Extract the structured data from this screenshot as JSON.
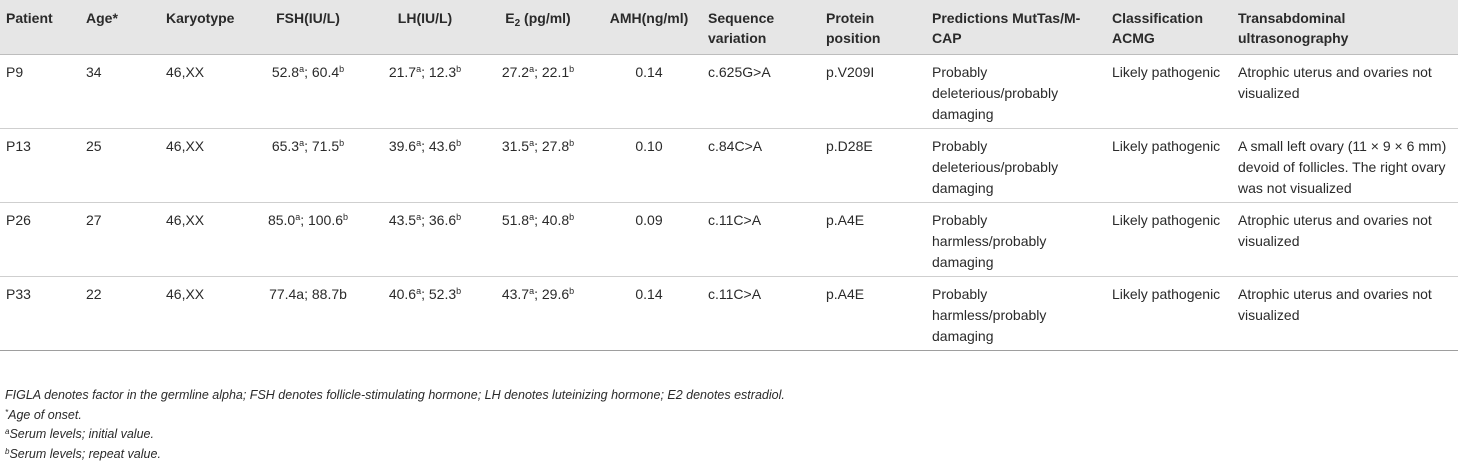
{
  "headers": [
    {
      "key": "patient",
      "text": "Patient",
      "align": "l"
    },
    {
      "key": "age",
      "text": "Age*",
      "align": "l"
    },
    {
      "key": "karyotype",
      "text": "Karyotype",
      "align": "l"
    },
    {
      "key": "fsh",
      "text": "FSH(IU/L)",
      "align": "c"
    },
    {
      "key": "lh",
      "text": "LH(IU/L)",
      "align": "c"
    },
    {
      "key": "e2",
      "text": "E",
      "sub": "2",
      "after": " (pg/ml)",
      "align": "c"
    },
    {
      "key": "amh",
      "text": "AMH(ng/ml)",
      "align": "c"
    },
    {
      "key": "seqvar",
      "text": "Sequence variation",
      "align": "l"
    },
    {
      "key": "protein",
      "text": "Protein position",
      "align": "l"
    },
    {
      "key": "pred",
      "text": "Predictions MutTas/M-CAP",
      "align": "l"
    },
    {
      "key": "acmg",
      "text": "Classification ACMG",
      "align": "l"
    },
    {
      "key": "us",
      "text": "Transabdominal ultrasonography",
      "align": "l"
    }
  ],
  "rows": [
    {
      "patient": "P9",
      "age": "34",
      "karyotype": "46,XX",
      "fsh": [
        {
          "t": "52.8"
        },
        {
          "s": "a"
        },
        {
          "t": "; 60.4"
        },
        {
          "s": "b"
        }
      ],
      "lh": [
        {
          "t": "21.7"
        },
        {
          "s": "a"
        },
        {
          "t": "; 12.3"
        },
        {
          "s": "b"
        }
      ],
      "e2": [
        {
          "t": "27.2"
        },
        {
          "s": "a"
        },
        {
          "t": "; 22.1"
        },
        {
          "s": "b"
        }
      ],
      "amh": "0.14",
      "seqvar": "c.625G>A",
      "protein": "p.V209I",
      "pred": "Probably deleterious/probably damaging",
      "acmg": "Likely pathogenic",
      "us": "Atrophic uterus and ovaries not visualized"
    },
    {
      "patient": "P13",
      "age": "25",
      "karyotype": "46,XX",
      "fsh": [
        {
          "t": "65.3"
        },
        {
          "s": "a"
        },
        {
          "t": "; 71.5"
        },
        {
          "s": "b"
        }
      ],
      "lh": [
        {
          "t": "39.6"
        },
        {
          "s": "a"
        },
        {
          "t": "; 43.6"
        },
        {
          "s": "b"
        }
      ],
      "e2": [
        {
          "t": "31.5"
        },
        {
          "s": "a"
        },
        {
          "t": "; 27.8"
        },
        {
          "s": "b"
        }
      ],
      "amh": "0.10",
      "seqvar": "c.84C>A",
      "protein": "p.D28E",
      "pred": "Probably deleterious/probably damaging",
      "acmg": "Likely pathogenic",
      "us": "A small left ovary (11 × 9 × 6 mm) devoid of follicles. The right ovary was not visualized"
    },
    {
      "patient": "P26",
      "age": "27",
      "karyotype": "46,XX",
      "fsh": [
        {
          "t": "85.0"
        },
        {
          "s": "a"
        },
        {
          "t": "; 100.6"
        },
        {
          "s": "b"
        }
      ],
      "lh": [
        {
          "t": "43.5"
        },
        {
          "s": "a"
        },
        {
          "t": "; 36.6"
        },
        {
          "s": "b"
        }
      ],
      "e2": [
        {
          "t": "51.8"
        },
        {
          "s": "a"
        },
        {
          "t": "; 40.8"
        },
        {
          "s": "b"
        }
      ],
      "amh": "0.09",
      "seqvar": "c.11C>A",
      "protein": "p.A4E",
      "pred": "Probably harmless/probably damaging",
      "acmg": "Likely pathogenic",
      "us": "Atrophic uterus and ovaries not visualized"
    },
    {
      "patient": "P33",
      "age": "22",
      "karyotype": "46,XX",
      "fsh": [
        {
          "t": "77.4a; 88.7b"
        }
      ],
      "lh": [
        {
          "t": "40.6"
        },
        {
          "s": "a"
        },
        {
          "t": "; 52.3"
        },
        {
          "s": "b"
        }
      ],
      "e2": [
        {
          "t": "43.7"
        },
        {
          "s": "a"
        },
        {
          "t": "; 29.6"
        },
        {
          "s": "b"
        }
      ],
      "amh": "0.14",
      "seqvar": "c.11C>A",
      "protein": "p.A4E",
      "pred": "Probably harmless/probably damaging",
      "acmg": "Likely pathogenic",
      "us": "Atrophic uterus and ovaries not visualized"
    }
  ],
  "footnotes": {
    "abbrev": "FIGLA denotes factor in the germline alpha; FSH denotes follicle-stimulating hormone; LH denotes luteinizing hormone; E2 denotes estradiol.",
    "star_mark": "*",
    "star_text": "Age of onset.",
    "a_mark": "a",
    "a_text": "Serum levels; initial value.",
    "b_mark": "b",
    "b_text": "Serum levels; repeat value."
  }
}
